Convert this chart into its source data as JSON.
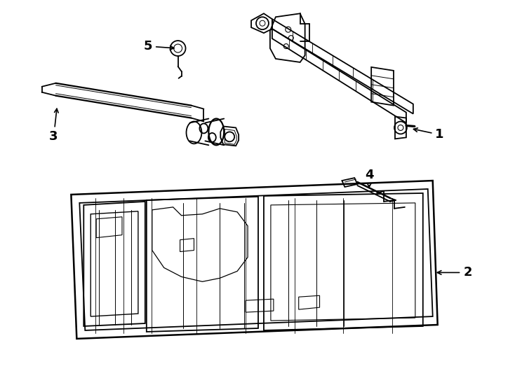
{
  "background_color": "#ffffff",
  "line_color": "#000000",
  "line_width": 1.3,
  "label_fontsize": 13,
  "label_fontweight": "bold",
  "figsize": [
    7.34,
    5.4
  ],
  "dpi": 100
}
